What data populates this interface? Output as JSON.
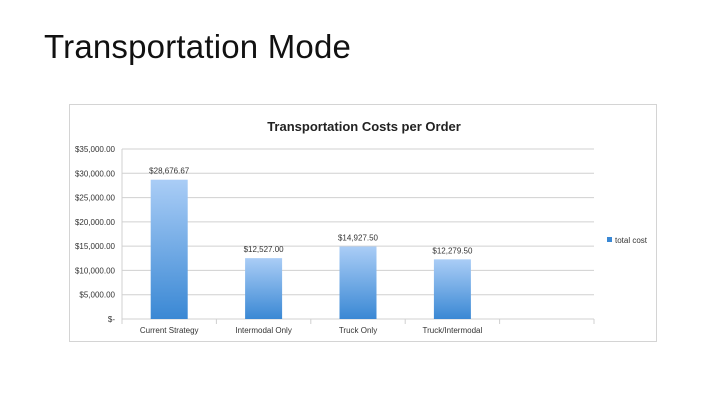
{
  "page": {
    "title": "Transportation Mode"
  },
  "chart_data": {
    "type": "bar",
    "title": "Transportation Costs per Order",
    "categories": [
      "Current Strategy",
      "Intermodal Only",
      "Truck Only",
      "Truck/Intermodal"
    ],
    "series": [
      {
        "name": "total cost",
        "values": [
          28676.67,
          12527.0,
          14927.5,
          12279.5
        ]
      }
    ],
    "data_labels": [
      "$28,676.67",
      "$12,527.00",
      "$14,927.50",
      "$12,279.50"
    ],
    "y_ticks": [
      "$-",
      "$5,000.00",
      "$10,000.00",
      "$15,000.00",
      "$20,000.00",
      "$25,000.00",
      "$30,000.00",
      "$35,000.00"
    ],
    "ylim": [
      0,
      35000
    ],
    "xlabel": "",
    "ylabel": "",
    "grid": true,
    "legend": "right",
    "colors": {
      "bar_top": "#aacdf6",
      "bar_bottom": "#3a88d4",
      "grid": "#d0d0d0"
    }
  }
}
